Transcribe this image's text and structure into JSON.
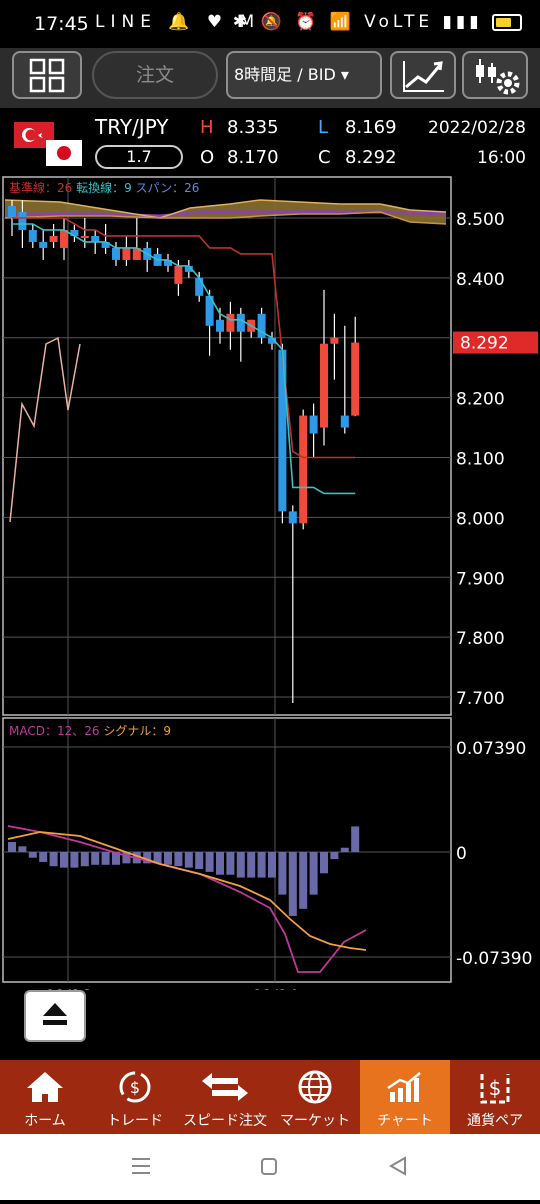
{
  "status": {
    "time": "17:45",
    "left_icons": "LINE 🔔 ♥ M •",
    "right_icons": "✱ 🔕 ⏰ 📶 VoLTE ▮▮▮"
  },
  "toolbar": {
    "order_label": "注文",
    "period_label": "8時間足 / BID ▾"
  },
  "instrument": {
    "pair": "TRY/JPY",
    "ratio": "1.7",
    "high_label": "H",
    "high": "8.335",
    "low_label": "L",
    "low": "8.169",
    "open_label": "O",
    "open": "8.170",
    "close_label": "C",
    "close": "8.292",
    "date": "2022/02/28",
    "time": "16:00"
  },
  "chart": {
    "ichimoku_legend": {
      "base": "基準線：26",
      "conv": "転換線：9",
      "span": "スパン：26"
    },
    "macd_legend": {
      "macd": "MACD：12、26",
      "signal": "シグナル：9"
    },
    "price_labels": [
      "8.500",
      "8.400",
      "8.300",
      "8.200",
      "8.100",
      "8.000",
      "7.900",
      "7.800",
      "7.700"
    ],
    "current_price": "8.292",
    "macd_labels": [
      "0.07390",
      "0",
      "-0.07390"
    ],
    "date_labels": [
      "02/16",
      "02/24"
    ],
    "colors": {
      "up": "#f04a3c",
      "down": "#2e9ae6",
      "base_line": "#c0302a",
      "conv_line": "#38c0c8",
      "span_band": "#8a7030",
      "cloud_purple": "#8844aa",
      "macd_line": "#c0389c",
      "signal_line": "#f0a040",
      "hist": "#6a6aa8"
    }
  },
  "chart_data": {
    "type": "candlestick",
    "ylim": [
      7.68,
      8.53
    ],
    "candles": [
      {
        "o": 8.52,
        "h": 8.53,
        "l": 8.47,
        "c": 8.5
      },
      {
        "o": 8.51,
        "h": 8.53,
        "l": 8.45,
        "c": 8.48
      },
      {
        "o": 8.48,
        "h": 8.49,
        "l": 8.45,
        "c": 8.46
      },
      {
        "o": 8.46,
        "h": 8.48,
        "l": 8.43,
        "c": 8.45
      },
      {
        "o": 8.46,
        "h": 8.49,
        "l": 8.45,
        "c": 8.47
      },
      {
        "o": 8.45,
        "h": 8.5,
        "l": 8.43,
        "c": 8.48
      },
      {
        "o": 8.48,
        "h": 8.49,
        "l": 8.46,
        "c": 8.47
      },
      {
        "o": 8.47,
        "h": 8.5,
        "l": 8.45,
        "c": 8.47
      },
      {
        "o": 8.47,
        "h": 8.48,
        "l": 8.44,
        "c": 8.46
      },
      {
        "o": 8.46,
        "h": 8.49,
        "l": 8.44,
        "c": 8.45
      },
      {
        "o": 8.45,
        "h": 8.46,
        "l": 8.42,
        "c": 8.43
      },
      {
        "o": 8.43,
        "h": 8.47,
        "l": 8.42,
        "c": 8.45
      },
      {
        "o": 8.43,
        "h": 8.5,
        "l": 8.43,
        "c": 8.45
      },
      {
        "o": 8.45,
        "h": 8.46,
        "l": 8.41,
        "c": 8.43
      },
      {
        "o": 8.44,
        "h": 8.45,
        "l": 8.42,
        "c": 8.42
      },
      {
        "o": 8.43,
        "h": 8.44,
        "l": 8.41,
        "c": 8.42
      },
      {
        "o": 8.39,
        "h": 8.43,
        "l": 8.37,
        "c": 8.42
      },
      {
        "o": 8.42,
        "h": 8.43,
        "l": 8.4,
        "c": 8.41
      },
      {
        "o": 8.4,
        "h": 8.41,
        "l": 8.36,
        "c": 8.37
      },
      {
        "o": 8.37,
        "h": 8.38,
        "l": 8.27,
        "c": 8.32
      },
      {
        "o": 8.33,
        "h": 8.35,
        "l": 8.29,
        "c": 8.31
      },
      {
        "o": 8.31,
        "h": 8.36,
        "l": 8.28,
        "c": 8.34
      },
      {
        "o": 8.34,
        "h": 8.35,
        "l": 8.26,
        "c": 8.31
      },
      {
        "o": 8.31,
        "h": 8.33,
        "l": 8.3,
        "c": 8.33
      },
      {
        "o": 8.34,
        "h": 8.35,
        "l": 8.29,
        "c": 8.3
      },
      {
        "o": 8.3,
        "h": 8.31,
        "l": 8.28,
        "c": 8.29
      },
      {
        "o": 8.28,
        "h": 8.29,
        "l": 7.99,
        "c": 8.01
      },
      {
        "o": 8.01,
        "h": 8.02,
        "l": 7.69,
        "c": 7.99
      },
      {
        "o": 7.99,
        "h": 8.18,
        "l": 7.98,
        "c": 8.17
      },
      {
        "o": 8.17,
        "h": 8.19,
        "l": 8.1,
        "c": 8.14
      },
      {
        "o": 8.15,
        "h": 8.38,
        "l": 8.12,
        "c": 8.29
      },
      {
        "o": 8.29,
        "h": 8.34,
        "l": 8.23,
        "c": 8.3
      },
      {
        "o": 8.17,
        "h": 8.32,
        "l": 8.14,
        "c": 8.15
      },
      {
        "o": 8.17,
        "h": 8.335,
        "l": 8.169,
        "c": 8.292
      }
    ],
    "macd_hist": [
      0.007,
      0.004,
      -0.004,
      -0.007,
      -0.01,
      -0.011,
      -0.011,
      -0.01,
      -0.009,
      -0.009,
      -0.009,
      -0.008,
      -0.008,
      -0.008,
      -0.008,
      -0.009,
      -0.01,
      -0.011,
      -0.012,
      -0.014,
      -0.016,
      -0.016,
      -0.018,
      -0.018,
      -0.018,
      -0.018,
      -0.03,
      -0.045,
      -0.04,
      -0.03,
      -0.015,
      -0.005,
      0.003,
      0.018
    ],
    "macd_ylim": [
      -0.09,
      0.09
    ]
  },
  "nav": {
    "items": [
      {
        "label": "ホーム"
      },
      {
        "label": "トレード"
      },
      {
        "label": "スピード注文"
      },
      {
        "label": "マーケット"
      },
      {
        "label": "チャート"
      },
      {
        "label": "通貨ペア"
      }
    ]
  }
}
